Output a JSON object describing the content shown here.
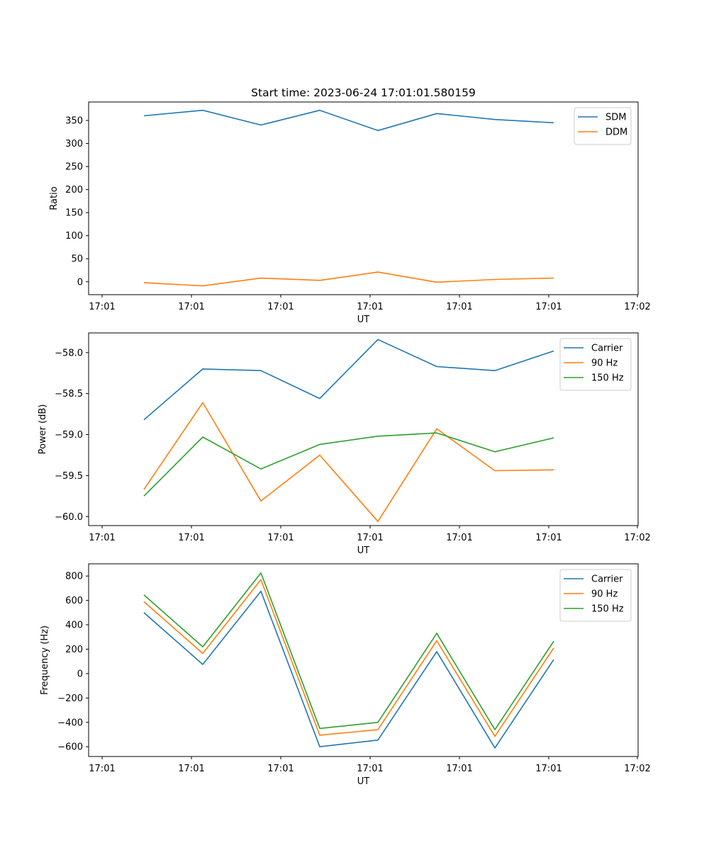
{
  "figure_title": "Start time: 2023-06-24 17:01:01.580159",
  "chart_data": [
    {
      "type": "line",
      "title": "Start time: 2023-06-24 17:01:01.580159",
      "xlabel": "UT",
      "ylabel": "Ratio",
      "x_tick_labels": [
        "17:01",
        "17:01",
        "17:01",
        "17:01",
        "17:01",
        "17:01",
        "17:02"
      ],
      "ylim": [
        -28,
        390
      ],
      "y_ticks": [
        0,
        50,
        100,
        150,
        200,
        250,
        300,
        350
      ],
      "legend": "top-right",
      "series": [
        {
          "name": "SDM",
          "color": "#1f77b4",
          "values": [
            360,
            372,
            340,
            372,
            328,
            365,
            352,
            345
          ]
        },
        {
          "name": "DDM",
          "color": "#ff7f0e",
          "values": [
            -2,
            -9,
            8,
            3,
            21,
            -1,
            5,
            8
          ]
        }
      ]
    },
    {
      "type": "line",
      "title": "",
      "xlabel": "UT",
      "ylabel": "Power (dB)",
      "x_tick_labels": [
        "17:01",
        "17:01",
        "17:01",
        "17:01",
        "17:01",
        "17:01",
        "17:02"
      ],
      "ylim": [
        -60.11,
        -57.76
      ],
      "y_ticks": [
        -60.0,
        -59.5,
        -59.0,
        -58.5,
        -58.0
      ],
      "legend": "top-right",
      "series": [
        {
          "name": "Carrier",
          "color": "#1f77b4",
          "values": [
            -58.82,
            -58.2,
            -58.22,
            -58.56,
            -57.84,
            -58.17,
            -58.22,
            -57.98
          ]
        },
        {
          "name": "90 Hz",
          "color": "#ff7f0e",
          "values": [
            -59.67,
            -58.61,
            -59.81,
            -59.25,
            -60.06,
            -58.93,
            -59.44,
            -59.43
          ]
        },
        {
          "name": "150 Hz",
          "color": "#2ca02c",
          "values": [
            -59.75,
            -59.03,
            -59.42,
            -59.12,
            -59.02,
            -58.98,
            -59.21,
            -59.04
          ]
        }
      ]
    },
    {
      "type": "line",
      "title": "",
      "xlabel": "UT",
      "ylabel": "Frequency (Hz)",
      "x_tick_labels": [
        "17:01",
        "17:01",
        "17:01",
        "17:01",
        "17:01",
        "17:01",
        "17:02"
      ],
      "ylim": [
        -680,
        900
      ],
      "y_ticks": [
        -600,
        -400,
        -200,
        0,
        200,
        400,
        600,
        800
      ],
      "legend": "top-right",
      "series": [
        {
          "name": "Carrier",
          "color": "#1f77b4",
          "values": [
            500,
            75,
            675,
            -600,
            -545,
            180,
            -610,
            115
          ]
        },
        {
          "name": "90 Hz",
          "color": "#ff7f0e",
          "values": [
            590,
            165,
            770,
            -505,
            -460,
            270,
            -515,
            210
          ]
        },
        {
          "name": "150 Hz",
          "color": "#2ca02c",
          "values": [
            645,
            220,
            825,
            -450,
            -400,
            330,
            -460,
            265
          ]
        }
      ]
    }
  ]
}
